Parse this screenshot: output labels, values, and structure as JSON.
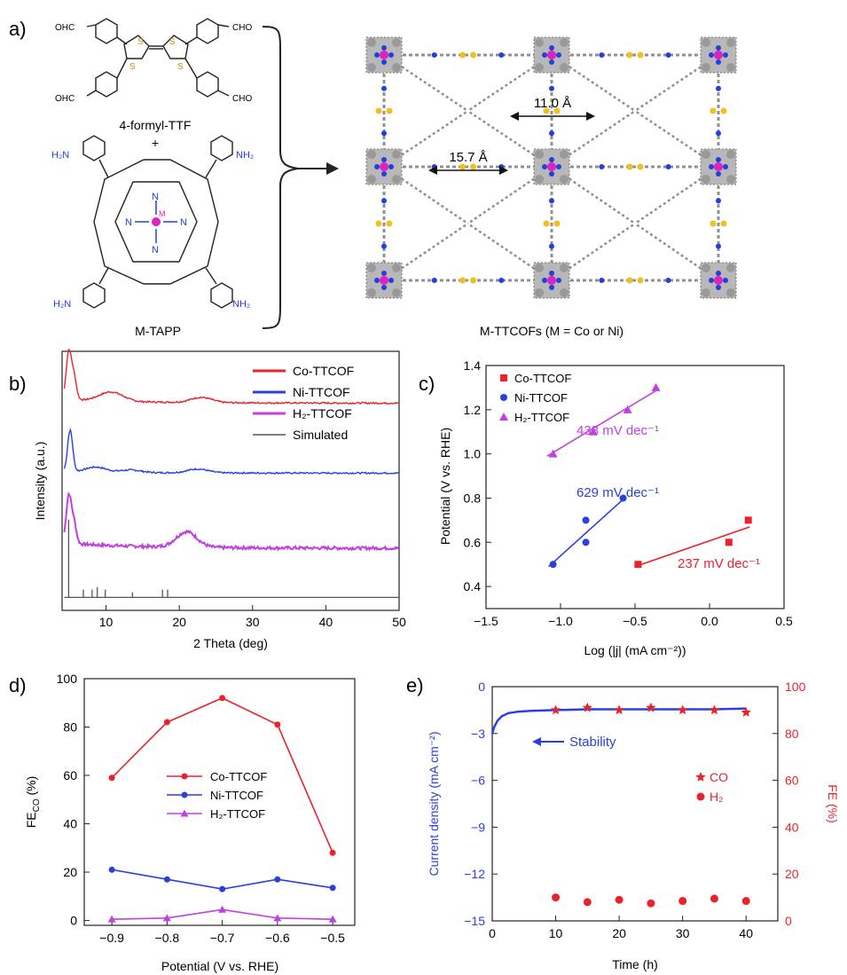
{
  "panel_labels": {
    "a": "a)",
    "b": "b)",
    "c": "c)",
    "d": "d)",
    "e": "e)"
  },
  "scheme": {
    "reactant1_label": "4-formyl-TTF",
    "plus": "+",
    "reactant2_label": "M-TAPP",
    "product_label": "M-TTCOFs (M = Co or Ni)",
    "dim_large": "15.7 Å",
    "dim_small": "11.0 Å",
    "aldehyde_group": "CHO",
    "aldehyde_group_left": "OHC",
    "amine_group": "NH₂",
    "amine_group_left": "H₂N",
    "thiophene_atom": "S",
    "porphyrin_atom": "N",
    "metal_atom": "M",
    "colors": {
      "metal": "#e020c0",
      "nitrogen": "#2040e0",
      "sulfur": "#f0c020",
      "carbon": "#909090"
    }
  },
  "chart_data": [
    {
      "id": "b",
      "type": "line",
      "xlabel": "2 Theta (deg)",
      "ylabel": "Intensity (a.u.)",
      "xlim": [
        4,
        50
      ],
      "xticks": [
        "10",
        "20",
        "30",
        "40",
        "50"
      ],
      "legend_position": "top-right",
      "series": [
        {
          "name": "Co-TTCOF",
          "color": "#e8232b",
          "offset": 0.8,
          "peaks": [
            [
              4.9,
              0.18
            ],
            [
              5.6,
              0.09
            ],
            [
              10,
              0.02
            ],
            [
              11.4,
              0.02
            ],
            [
              23,
              0.02
            ]
          ],
          "tail": 0.015
        },
        {
          "name": "Ni-TTCOF",
          "color": "#2b3fe0",
          "offset": 0.53,
          "peaks": [
            [
              5.1,
              0.16
            ],
            [
              8.6,
              0.02
            ],
            [
              13.4,
              0.01
            ],
            [
              22.5,
              0.015
            ]
          ],
          "tail": 0.005
        },
        {
          "name": "H2-TTCOF",
          "name_display": "H₂-TTCOF",
          "color": "#c040e0",
          "offset": 0.24,
          "peaks": [
            [
              4.9,
              0.18
            ],
            [
              5.6,
              0.08
            ],
            [
              21,
              0.06
            ]
          ],
          "tail": 0.02
        },
        {
          "name": "Simulated",
          "color": "#555555",
          "offset": 0.05,
          "peaks": [
            [
              4.9,
              0.3
            ],
            [
              6.9,
              0.03
            ],
            [
              8.1,
              0.03
            ],
            [
              8.8,
              0.04
            ],
            [
              9.9,
              0.03
            ],
            [
              13.6,
              0.02
            ],
            [
              17.7,
              0.03
            ],
            [
              18.4,
              0.03
            ]
          ],
          "tail": 0
        }
      ]
    },
    {
      "id": "c",
      "type": "scatter",
      "xlabel": "Log (|j| (mA cm⁻²))",
      "ylabel": "Potential (V vs. RHE)",
      "xlim": [
        -1.5,
        0.5
      ],
      "ylim": [
        0.3,
        1.4
      ],
      "xticks": [
        "-1.5",
        "-1.0",
        "-0.5",
        "0.0",
        "0.5"
      ],
      "yticks": [
        "0.4",
        "0.6",
        "0.8",
        "1.0",
        "1.2",
        "1.4"
      ],
      "legend_position": "top-left",
      "series": [
        {
          "name": "Co-TTCOF",
          "color": "#e8232b",
          "marker": "square",
          "x": [
            -0.48,
            0.13,
            0.26
          ],
          "y": [
            0.5,
            0.6,
            0.7
          ],
          "fit": [
            [
              -0.5,
              0.49
            ],
            [
              0.27,
              0.67
            ]
          ],
          "annotation": "237 mV dec⁻¹"
        },
        {
          "name": "Ni-TTCOF",
          "color": "#2b3fe0",
          "marker": "circle",
          "x": [
            -1.05,
            -0.83,
            -0.83,
            -0.58
          ],
          "y": [
            0.5,
            0.7,
            0.6,
            0.8
          ],
          "fit": [
            [
              -1.08,
              0.49
            ],
            [
              -0.57,
              0.8
            ]
          ],
          "annotation": "629 mV dec⁻¹"
        },
        {
          "name": "H2-TTCOF",
          "name_display": "H₂-TTCOF",
          "color": "#c040e0",
          "marker": "triangle",
          "x": [
            -1.05,
            -0.78,
            -0.55,
            -0.36
          ],
          "y": [
            1.0,
            1.1,
            1.2,
            1.3
          ],
          "fit": [
            [
              -1.09,
              0.99
            ],
            [
              -0.35,
              1.29
            ]
          ],
          "annotation": "433 mV dec⁻¹"
        }
      ]
    },
    {
      "id": "d",
      "type": "line",
      "xlabel": "Potential (V vs. RHE)",
      "ylabel": "FE",
      "ylabel_sub": "CO",
      "ylabel_tail": " (%)",
      "xlim": [
        -0.95,
        -0.46
      ],
      "ylim": [
        -2,
        100
      ],
      "xticks": [
        "-0.9",
        "-0.8",
        "-0.7",
        "-0.6",
        "-0.5"
      ],
      "xtick_values": [
        -0.9,
        -0.8,
        -0.7,
        -0.6,
        -0.5
      ],
      "yticks": [
        "0",
        "20",
        "40",
        "60",
        "80",
        "100"
      ],
      "legend_position": "center",
      "series": [
        {
          "name": "Co-TTCOF",
          "color": "#e8232b",
          "marker": "circle",
          "x": [
            -0.9,
            -0.8,
            -0.7,
            -0.6,
            -0.5
          ],
          "y": [
            59,
            82,
            92,
            81,
            28
          ]
        },
        {
          "name": "Ni-TTCOF",
          "color": "#2b3fe0",
          "marker": "circle",
          "x": [
            -0.9,
            -0.8,
            -0.7,
            -0.6,
            -0.5
          ],
          "y": [
            21,
            17,
            13,
            17,
            13.5
          ]
        },
        {
          "name": "H2-TTCOF",
          "name_display": "H₂-TTCOF",
          "color": "#c040e0",
          "marker": "triangle",
          "x": [
            -0.9,
            -0.8,
            -0.7,
            -0.6,
            -0.5
          ],
          "y": [
            0.5,
            1,
            4.5,
            1,
            0.5
          ]
        }
      ]
    },
    {
      "id": "e",
      "type": "line",
      "xlabel": "Time (h)",
      "ylabel_left": "Current density (mA cm⁻²)",
      "ylabel_right": "FE (%)",
      "xlim": [
        0,
        45
      ],
      "ylim_left": [
        -15,
        0
      ],
      "ylim_right": [
        0,
        100
      ],
      "xticks": [
        "0",
        "10",
        "20",
        "30",
        "40"
      ],
      "yticks_left": [
        "0",
        "-3",
        "-6",
        "-9",
        "-12",
        "-15"
      ],
      "yticks_right": [
        "0",
        "20",
        "40",
        "60",
        "80",
        "100"
      ],
      "legend_position": "right",
      "stability_label": "Stability",
      "series": [
        {
          "name": "Stability",
          "axis": "left",
          "color": "#2b3fe0",
          "x": [
            0,
            0.3,
            0.8,
            1.5,
            2.5,
            4,
            6,
            10,
            15,
            20,
            25,
            30,
            35,
            40
          ],
          "y": [
            -3.0,
            -2.6,
            -2.2,
            -1.9,
            -1.7,
            -1.6,
            -1.55,
            -1.5,
            -1.45,
            -1.45,
            -1.45,
            -1.45,
            -1.45,
            -1.4
          ]
        },
        {
          "name": "CO",
          "axis": "right",
          "color": "#e8232b",
          "marker": "star",
          "x": [
            10,
            15,
            20,
            25,
            30,
            35,
            40
          ],
          "y": [
            90,
            91,
            90,
            91,
            90,
            90,
            89
          ]
        },
        {
          "name": "H2",
          "name_display": "H₂",
          "axis": "right",
          "color": "#e8232b",
          "marker": "circle",
          "x": [
            10,
            15,
            20,
            25,
            30,
            35,
            40
          ],
          "y": [
            10,
            8,
            9,
            7.5,
            8.5,
            9.5,
            8.5
          ]
        }
      ]
    }
  ]
}
